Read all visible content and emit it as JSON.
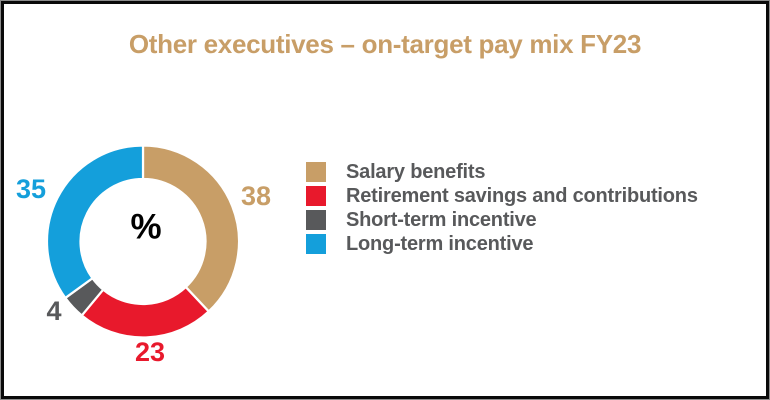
{
  "chart_data": {
    "type": "pie",
    "donut": true,
    "title": "Other executives – on-target pay mix FY23",
    "center_label": "%",
    "unit": "%",
    "start_angle_deg": 0,
    "direction": "clockwise",
    "legend_position": "right",
    "segments": [
      {
        "label": "Salary benefits",
        "value": 38,
        "color": "#C89E67"
      },
      {
        "label": "Retirement savings and contributions",
        "value": 23,
        "color": "#E8192C"
      },
      {
        "label": "Short-term incentive",
        "value": 4,
        "color": "#58595B"
      },
      {
        "label": "Long-term incentive",
        "value": 35,
        "color": "#149FDB"
      }
    ],
    "colors": {
      "title": "#C89E67",
      "legend_text": "#58595B",
      "center_label": "#000000",
      "segment_gap": "#FFFFFF"
    }
  }
}
